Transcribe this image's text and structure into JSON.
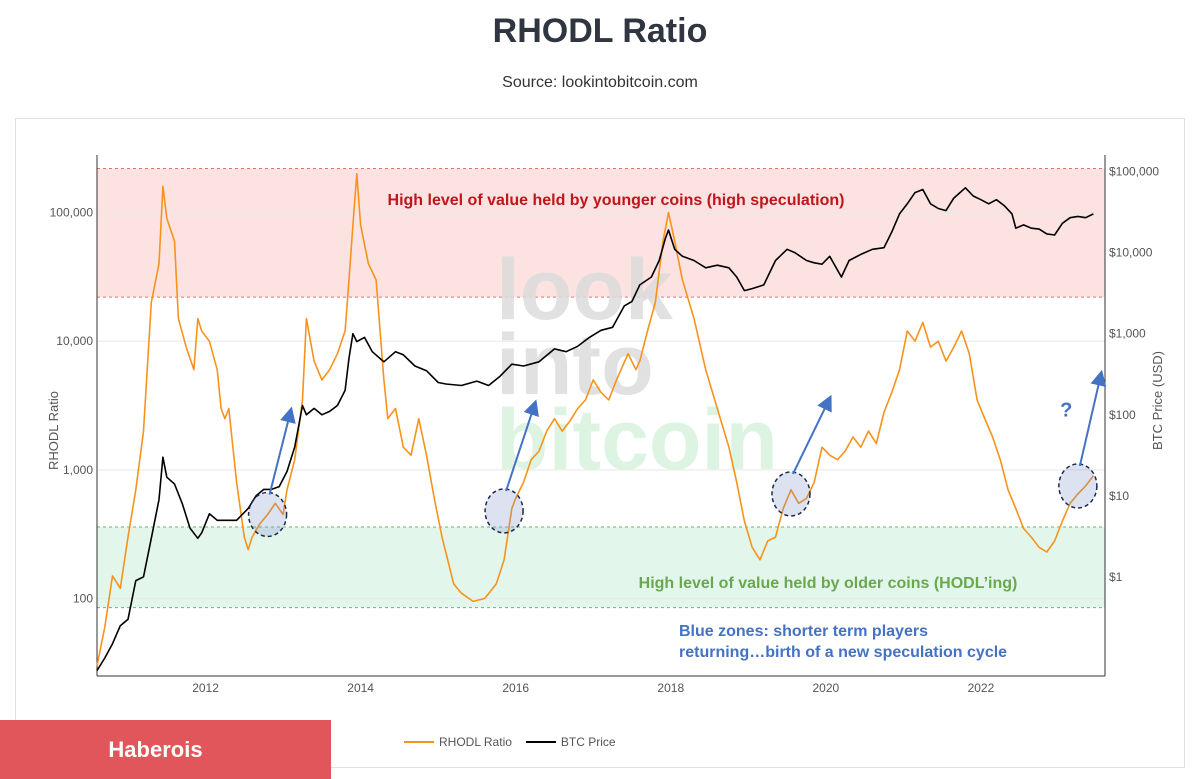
{
  "page": {
    "title": "RHODL Ratio",
    "subtitle": "Source: lookintobitcoin.com",
    "brand_label": "Haberois"
  },
  "colors": {
    "rhodl": "#f7931a",
    "btc": "#000000",
    "red_zone": "#fde2e2",
    "green_zone": "#e3f6ec",
    "annotation_red": "#c0151b",
    "annotation_green": "#6aa84f",
    "annotation_blue": "#4472c4"
  },
  "watermark": [
    "look",
    "into",
    "bitcoin"
  ],
  "chart_data": {
    "type": "line",
    "title": "RHODL Ratio",
    "x": {
      "min": 2010.6,
      "max": 2023.6,
      "ticks": [
        2012,
        2014,
        2016,
        2018,
        2020,
        2022
      ],
      "tick_labels": [
        "2012",
        "2014",
        "2016",
        "2018",
        "2020",
        "2022"
      ]
    },
    "y_left": {
      "label": "RHODL Ratio",
      "scale": "log",
      "min": 25,
      "max": 280000,
      "ticks": [
        100,
        1000,
        10000,
        100000
      ],
      "tick_labels": [
        "100",
        "1,000",
        "10,000",
        "100,000"
      ]
    },
    "y_right": {
      "label": "BTC Price (USD)",
      "scale": "log",
      "min": 0.06,
      "max": 160000,
      "ticks": [
        1,
        10,
        100,
        1000,
        10000,
        100000
      ],
      "tick_labels": [
        "$1",
        "$10",
        "$100",
        "$1,000",
        "$10,000",
        "$100,000"
      ]
    },
    "zones": [
      {
        "name": "high speculation",
        "axis": "left",
        "from": 22000,
        "to": 220000,
        "color": "red"
      },
      {
        "name": "hodling",
        "axis": "left",
        "from": 85,
        "to": 360,
        "color": "green"
      }
    ],
    "series": [
      {
        "name": "RHODL Ratio",
        "axis": "left",
        "color": "#f7931a",
        "points": [
          [
            2010.6,
            30
          ],
          [
            2010.7,
            60
          ],
          [
            2010.8,
            150
          ],
          [
            2010.9,
            120
          ],
          [
            2011.0,
            300
          ],
          [
            2011.1,
            700
          ],
          [
            2011.2,
            2000
          ],
          [
            2011.3,
            20000
          ],
          [
            2011.4,
            40000
          ],
          [
            2011.45,
            160000
          ],
          [
            2011.5,
            90000
          ],
          [
            2011.6,
            60000
          ],
          [
            2011.65,
            15000
          ],
          [
            2011.75,
            9000
          ],
          [
            2011.85,
            6000
          ],
          [
            2011.9,
            15000
          ],
          [
            2011.95,
            12000
          ],
          [
            2012.05,
            10000
          ],
          [
            2012.15,
            6000
          ],
          [
            2012.2,
            3000
          ],
          [
            2012.25,
            2500
          ],
          [
            2012.3,
            3000
          ],
          [
            2012.4,
            800
          ],
          [
            2012.5,
            300
          ],
          [
            2012.55,
            240
          ],
          [
            2012.6,
            300
          ],
          [
            2012.7,
            380
          ],
          [
            2012.8,
            450
          ],
          [
            2012.9,
            550
          ],
          [
            2013.0,
            450
          ],
          [
            2013.05,
            700
          ],
          [
            2013.15,
            1200
          ],
          [
            2013.25,
            3500
          ],
          [
            2013.3,
            15000
          ],
          [
            2013.4,
            7000
          ],
          [
            2013.5,
            5000
          ],
          [
            2013.6,
            6000
          ],
          [
            2013.7,
            8000
          ],
          [
            2013.8,
            12000
          ],
          [
            2013.85,
            30000
          ],
          [
            2013.9,
            80000
          ],
          [
            2013.95,
            200000
          ],
          [
            2014.0,
            80000
          ],
          [
            2014.1,
            40000
          ],
          [
            2014.2,
            30000
          ],
          [
            2014.3,
            5000
          ],
          [
            2014.35,
            2500
          ],
          [
            2014.45,
            3000
          ],
          [
            2014.55,
            1500
          ],
          [
            2014.65,
            1300
          ],
          [
            2014.75,
            2500
          ],
          [
            2014.85,
            1300
          ],
          [
            2014.95,
            600
          ],
          [
            2015.05,
            300
          ],
          [
            2015.2,
            130
          ],
          [
            2015.3,
            110
          ],
          [
            2015.45,
            95
          ],
          [
            2015.6,
            100
          ],
          [
            2015.75,
            130
          ],
          [
            2015.85,
            200
          ],
          [
            2015.95,
            500
          ],
          [
            2016.0,
            600
          ],
          [
            2016.1,
            800
          ],
          [
            2016.2,
            1200
          ],
          [
            2016.3,
            1400
          ],
          [
            2016.4,
            2000
          ],
          [
            2016.5,
            2500
          ],
          [
            2016.6,
            2000
          ],
          [
            2016.7,
            2400
          ],
          [
            2016.8,
            3000
          ],
          [
            2016.9,
            3500
          ],
          [
            2017.0,
            5000
          ],
          [
            2017.1,
            4000
          ],
          [
            2017.2,
            3500
          ],
          [
            2017.3,
            5000
          ],
          [
            2017.45,
            8000
          ],
          [
            2017.55,
            6000
          ],
          [
            2017.6,
            7000
          ],
          [
            2017.7,
            12000
          ],
          [
            2017.8,
            20000
          ],
          [
            2017.9,
            60000
          ],
          [
            2017.97,
            100000
          ],
          [
            2018.05,
            60000
          ],
          [
            2018.15,
            30000
          ],
          [
            2018.3,
            15000
          ],
          [
            2018.45,
            6000
          ],
          [
            2018.6,
            3000
          ],
          [
            2018.75,
            1500
          ],
          [
            2018.85,
            800
          ],
          [
            2018.95,
            400
          ],
          [
            2019.05,
            250
          ],
          [
            2019.15,
            200
          ],
          [
            2019.25,
            280
          ],
          [
            2019.35,
            300
          ],
          [
            2019.45,
            500
          ],
          [
            2019.55,
            700
          ],
          [
            2019.65,
            550
          ],
          [
            2019.75,
            600
          ],
          [
            2019.85,
            800
          ],
          [
            2019.95,
            1500
          ],
          [
            2020.05,
            1300
          ],
          [
            2020.15,
            1200
          ],
          [
            2020.25,
            1400
          ],
          [
            2020.35,
            1800
          ],
          [
            2020.45,
            1500
          ],
          [
            2020.55,
            2000
          ],
          [
            2020.65,
            1600
          ],
          [
            2020.75,
            2800
          ],
          [
            2020.85,
            4000
          ],
          [
            2020.95,
            6000
          ],
          [
            2021.05,
            12000
          ],
          [
            2021.15,
            10000
          ],
          [
            2021.25,
            14000
          ],
          [
            2021.35,
            9000
          ],
          [
            2021.45,
            10000
          ],
          [
            2021.55,
            7000
          ],
          [
            2021.65,
            9000
          ],
          [
            2021.75,
            12000
          ],
          [
            2021.85,
            8000
          ],
          [
            2021.95,
            3500
          ],
          [
            2022.05,
            2500
          ],
          [
            2022.15,
            1800
          ],
          [
            2022.25,
            1200
          ],
          [
            2022.35,
            700
          ],
          [
            2022.45,
            500
          ],
          [
            2022.55,
            350
          ],
          [
            2022.65,
            300
          ],
          [
            2022.75,
            250
          ],
          [
            2022.85,
            230
          ],
          [
            2022.95,
            280
          ],
          [
            2023.05,
            400
          ],
          [
            2023.15,
            550
          ],
          [
            2023.25,
            650
          ],
          [
            2023.35,
            750
          ],
          [
            2023.45,
            900
          ]
        ]
      },
      {
        "name": "BTC Price",
        "axis": "right",
        "color": "#000000",
        "points": [
          [
            2010.6,
            0.07
          ],
          [
            2010.7,
            0.1
          ],
          [
            2010.8,
            0.15
          ],
          [
            2010.9,
            0.25
          ],
          [
            2011.0,
            0.3
          ],
          [
            2011.1,
            0.9
          ],
          [
            2011.2,
            1
          ],
          [
            2011.3,
            3
          ],
          [
            2011.4,
            9
          ],
          [
            2011.45,
            30
          ],
          [
            2011.5,
            17
          ],
          [
            2011.6,
            14
          ],
          [
            2011.7,
            8
          ],
          [
            2011.8,
            4
          ],
          [
            2011.9,
            3
          ],
          [
            2011.95,
            3.5
          ],
          [
            2012.05,
            6
          ],
          [
            2012.15,
            5
          ],
          [
            2012.3,
            5
          ],
          [
            2012.4,
            5
          ],
          [
            2012.55,
            7
          ],
          [
            2012.65,
            10
          ],
          [
            2012.75,
            12
          ],
          [
            2012.85,
            12
          ],
          [
            2012.95,
            13
          ],
          [
            2013.05,
            20
          ],
          [
            2013.15,
            40
          ],
          [
            2013.25,
            130
          ],
          [
            2013.3,
            100
          ],
          [
            2013.4,
            120
          ],
          [
            2013.5,
            100
          ],
          [
            2013.6,
            110
          ],
          [
            2013.7,
            130
          ],
          [
            2013.8,
            200
          ],
          [
            2013.85,
            500
          ],
          [
            2013.9,
            1000
          ],
          [
            2013.95,
            800
          ],
          [
            2014.05,
            900
          ],
          [
            2014.15,
            600
          ],
          [
            2014.3,
            450
          ],
          [
            2014.45,
            600
          ],
          [
            2014.55,
            550
          ],
          [
            2014.7,
            400
          ],
          [
            2014.85,
            350
          ],
          [
            2015.0,
            250
          ],
          [
            2015.1,
            240
          ],
          [
            2015.3,
            230
          ],
          [
            2015.5,
            260
          ],
          [
            2015.65,
            230
          ],
          [
            2015.8,
            300
          ],
          [
            2015.95,
            420
          ],
          [
            2016.1,
            400
          ],
          [
            2016.3,
            450
          ],
          [
            2016.5,
            650
          ],
          [
            2016.65,
            600
          ],
          [
            2016.8,
            700
          ],
          [
            2016.95,
            900
          ],
          [
            2017.1,
            1100
          ],
          [
            2017.25,
            1200
          ],
          [
            2017.4,
            2200
          ],
          [
            2017.5,
            2500
          ],
          [
            2017.6,
            4000
          ],
          [
            2017.75,
            5000
          ],
          [
            2017.85,
            8000
          ],
          [
            2017.93,
            15000
          ],
          [
            2017.97,
            19000
          ],
          [
            2018.05,
            11000
          ],
          [
            2018.15,
            9000
          ],
          [
            2018.3,
            8000
          ],
          [
            2018.45,
            6500
          ],
          [
            2018.6,
            7000
          ],
          [
            2018.75,
            6500
          ],
          [
            2018.85,
            5000
          ],
          [
            2018.95,
            3400
          ],
          [
            2019.05,
            3600
          ],
          [
            2019.2,
            4000
          ],
          [
            2019.35,
            8000
          ],
          [
            2019.5,
            11000
          ],
          [
            2019.6,
            10000
          ],
          [
            2019.75,
            8000
          ],
          [
            2019.85,
            7500
          ],
          [
            2019.95,
            7200
          ],
          [
            2020.05,
            9000
          ],
          [
            2020.2,
            5000
          ],
          [
            2020.3,
            8000
          ],
          [
            2020.45,
            9500
          ],
          [
            2020.6,
            11000
          ],
          [
            2020.75,
            11500
          ],
          [
            2020.85,
            18000
          ],
          [
            2020.95,
            30000
          ],
          [
            2021.05,
            40000
          ],
          [
            2021.15,
            55000
          ],
          [
            2021.25,
            60000
          ],
          [
            2021.35,
            40000
          ],
          [
            2021.45,
            35000
          ],
          [
            2021.55,
            33000
          ],
          [
            2021.65,
            47000
          ],
          [
            2021.8,
            63000
          ],
          [
            2021.9,
            50000
          ],
          [
            2022.0,
            45000
          ],
          [
            2022.1,
            40000
          ],
          [
            2022.2,
            45000
          ],
          [
            2022.3,
            38000
          ],
          [
            2022.4,
            30000
          ],
          [
            2022.45,
            20000
          ],
          [
            2022.55,
            22000
          ],
          [
            2022.65,
            20000
          ],
          [
            2022.75,
            19500
          ],
          [
            2022.85,
            17000
          ],
          [
            2022.95,
            16500
          ],
          [
            2023.05,
            23000
          ],
          [
            2023.15,
            27000
          ],
          [
            2023.25,
            28000
          ],
          [
            2023.35,
            27000
          ],
          [
            2023.45,
            30000
          ]
        ]
      }
    ],
    "zone_labels": {
      "red": "High level of value held by  younger coins (high speculation)",
      "green": "High level of value held by older coins (HODL’ing)",
      "blue_line1": "Blue zones: shorter term players",
      "blue_line2": "returning…birth of a new speculation cycle"
    },
    "blue_zones": [
      {
        "x": 2012.8,
        "y": 450,
        "arrow_to": [
          2013.1,
          2900
        ]
      },
      {
        "x": 2015.85,
        "y": 480,
        "arrow_to": [
          2016.25,
          3300
        ]
      },
      {
        "x": 2019.55,
        "y": 650,
        "arrow_to": [
          2020.05,
          3600
        ]
      },
      {
        "x": 2023.25,
        "y": 750,
        "arrow_to": [
          2023.55,
          5600
        ]
      }
    ],
    "question_mark": "?",
    "legend": {
      "position": "bottom",
      "items": [
        "RHODL Ratio",
        "BTC Price"
      ]
    }
  }
}
